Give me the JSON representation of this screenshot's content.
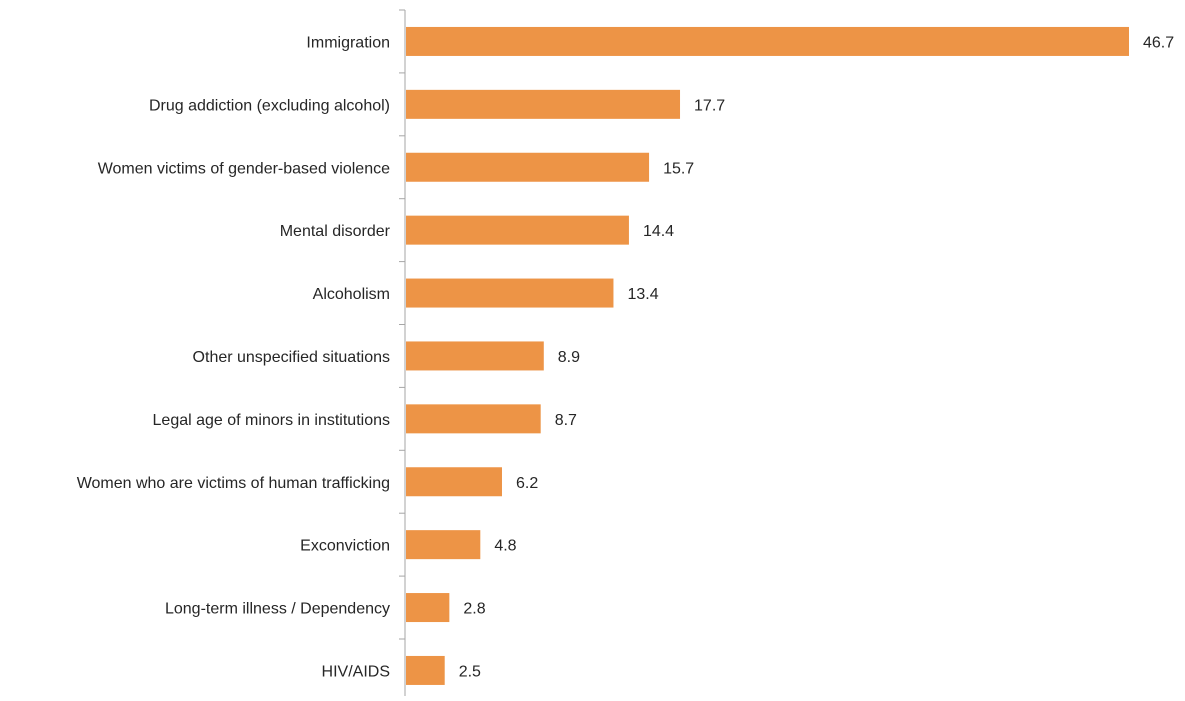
{
  "chart_data": {
    "type": "bar",
    "orientation": "horizontal",
    "categories": [
      "Immigration",
      "Drug addiction (excluding alcohol)",
      "Women victims of gender-based violence",
      "Mental disorder",
      "Alcoholism",
      "Other unspecified situations",
      "Legal age of minors in institutions",
      "Women who are victims of human trafficking",
      "Exconviction",
      "Long-term illness / Dependency",
      "HIV/AIDS"
    ],
    "values": [
      46.7,
      17.7,
      15.7,
      14.4,
      13.4,
      8.9,
      8.7,
      6.2,
      4.8,
      2.8,
      2.5
    ],
    "value_labels": [
      "46.7",
      "17.7",
      "15.7",
      "14.4",
      "13.4",
      "8.9",
      "8.7",
      "6.2",
      "4.8",
      "2.8",
      "2.5"
    ],
    "title": "",
    "xlabel": "",
    "ylabel": "",
    "xlim": [
      0,
      46.7
    ],
    "grid": false,
    "legend": "none",
    "bar_color": "#ED9446",
    "axis_color": "#A6A6A6",
    "text_color": "#262626"
  }
}
